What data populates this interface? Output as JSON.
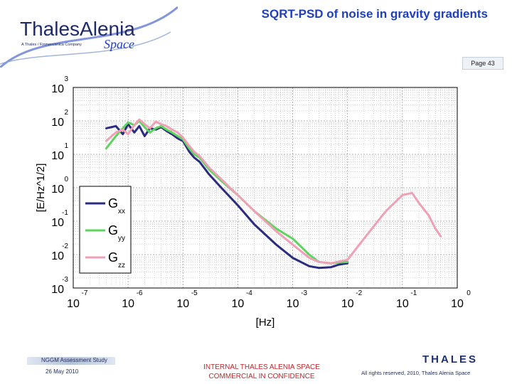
{
  "header": {
    "logo_name": "ThalesAlenia",
    "logo_tagline": "A Thales / Finmeccanica Company",
    "logo_space": "Space",
    "title": "SQRT-PSD of noise in gravity gradients",
    "page": "Page 43"
  },
  "chart_data": {
    "type": "line",
    "title": "",
    "xlabel": "[Hz]",
    "ylabel": "[E/Hz^1/2]",
    "x_scale": "log",
    "y_scale": "log",
    "xlim": [
      1e-07,
      1
    ],
    "ylim": [
      0.001,
      1000
    ],
    "x_ticks": [
      {
        "base": "10",
        "exp": "-7"
      },
      {
        "base": "10",
        "exp": "-6"
      },
      {
        "base": "10",
        "exp": "-5"
      },
      {
        "base": "10",
        "exp": "-4"
      },
      {
        "base": "10",
        "exp": "-3"
      },
      {
        "base": "10",
        "exp": "-2"
      },
      {
        "base": "10",
        "exp": "-1"
      },
      {
        "base": "10",
        "exp": "0"
      }
    ],
    "y_ticks": [
      {
        "base": "10",
        "exp": "-3"
      },
      {
        "base": "10",
        "exp": "-2"
      },
      {
        "base": "10",
        "exp": "-1"
      },
      {
        "base": "10",
        "exp": "0"
      },
      {
        "base": "10",
        "exp": "1"
      },
      {
        "base": "10",
        "exp": "2"
      },
      {
        "base": "10",
        "exp": "3"
      }
    ],
    "grid": true,
    "legend_position": "center-left",
    "series": [
      {
        "name": "G",
        "subscript": "xx",
        "color": "#2b2b80",
        "x": [
          4e-07,
          6e-07,
          8e-07,
          1e-06,
          1.3e-06,
          1.6e-06,
          2e-06,
          2.5e-06,
          3.2e-06,
          4e-06,
          5e-06,
          6.3e-06,
          8e-06,
          1e-05,
          1.3e-05,
          1.6e-05,
          2e-05,
          3e-05,
          5e-05,
          0.0001,
          0.0002,
          0.0005,
          0.001,
          0.002,
          0.003,
          0.005,
          0.007,
          0.01
        ],
        "y": [
          60,
          70,
          40,
          80,
          45,
          70,
          35,
          60,
          55,
          65,
          50,
          40,
          30,
          25,
          12,
          8,
          6,
          2.5,
          1.0,
          0.3,
          0.08,
          0.02,
          0.008,
          0.0045,
          0.004,
          0.0042,
          0.005,
          0.0055
        ]
      },
      {
        "name": "G",
        "subscript": "yy",
        "color": "#5ed35e",
        "x": [
          4e-07,
          6e-07,
          8e-07,
          1e-06,
          1.3e-06,
          1.6e-06,
          2e-06,
          2.5e-06,
          3.2e-06,
          4e-06,
          5e-06,
          6.3e-06,
          8e-06,
          1e-05,
          1.3e-05,
          1.6e-05,
          2e-05,
          3e-05,
          5e-05,
          0.0001,
          0.0002,
          0.0005,
          0.001,
          0.002,
          0.003,
          0.005,
          0.007,
          0.01
        ],
        "y": [
          15,
          35,
          60,
          90,
          75,
          100,
          65,
          45,
          60,
          70,
          55,
          45,
          35,
          28,
          15,
          10,
          8,
          3.5,
          1.6,
          0.6,
          0.2,
          0.06,
          0.03,
          0.01,
          0.006,
          0.0055,
          0.0058,
          0.006
        ]
      },
      {
        "name": "G",
        "subscript": "zz",
        "color": "#f0a0b4",
        "x": [
          4e-07,
          6e-07,
          8e-07,
          1e-06,
          1.3e-06,
          1.6e-06,
          2e-06,
          2.5e-06,
          3.2e-06,
          4e-06,
          5e-06,
          6.3e-06,
          8e-06,
          1e-05,
          1.3e-05,
          1.6e-05,
          2e-05,
          3e-05,
          5e-05,
          0.0001,
          0.0002,
          0.0005,
          0.001,
          0.002,
          0.003,
          0.005,
          0.01,
          0.02,
          0.05,
          0.1,
          0.15,
          0.2,
          0.3,
          0.4,
          0.5
        ],
        "y": [
          25,
          45,
          55,
          40,
          75,
          110,
          80,
          60,
          95,
          80,
          70,
          55,
          45,
          32,
          18,
          12,
          9,
          4.0,
          1.8,
          0.6,
          0.2,
          0.05,
          0.02,
          0.008,
          0.006,
          0.0055,
          0.007,
          0.03,
          0.2,
          0.6,
          0.7,
          0.35,
          0.15,
          0.06,
          0.035
        ]
      }
    ]
  },
  "footer": {
    "study": "NGGM Assessment Study",
    "date": "26 May 2010",
    "class_line1": "INTERNAL THALES ALENIA SPACE",
    "class_line2": "COMMERCIAL IN CONFIDENCE",
    "brand": "THALES",
    "rights": "All rights reserved, 2010, Thales Alenia Space"
  }
}
